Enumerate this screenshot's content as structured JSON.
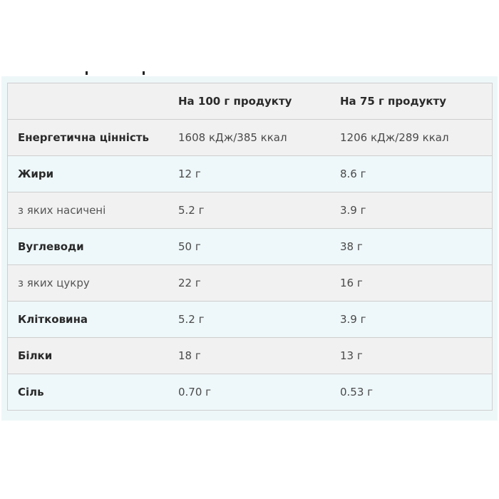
{
  "table": {
    "headers": [
      "",
      "На 100 г продукту",
      "На 75 г продукту"
    ],
    "rows": [
      {
        "label": "Енергетична цінність",
        "per100": "1608 кДж/385 ккал",
        "per75": "1206 кДж/289 ккал",
        "bold": true
      },
      {
        "label": "Жири",
        "per100": "12 г",
        "per75": "8.6 г",
        "bold": true
      },
      {
        "label": "з яких насичені",
        "per100": "5.2 г",
        "per75": "3.9 г",
        "bold": false
      },
      {
        "label": "Вуглеводи",
        "per100": "50 г",
        "per75": "38 г",
        "bold": true
      },
      {
        "label": "з яких цукру",
        "per100": "22 г",
        "per75": "16 г",
        "bold": false
      },
      {
        "label": "Клітковина",
        "per100": "5.2 г",
        "per75": "3.9 г",
        "bold": true
      },
      {
        "label": "Білки",
        "per100": "18 г",
        "per75": "13 г",
        "bold": true
      },
      {
        "label": "Сіль",
        "per100": "0.70 г",
        "per75": "0.53 г",
        "bold": true
      }
    ]
  },
  "colors": {
    "row_gray": "#f1f1f1",
    "row_blue": "#eef7f9",
    "border": "#cfcfcf"
  }
}
